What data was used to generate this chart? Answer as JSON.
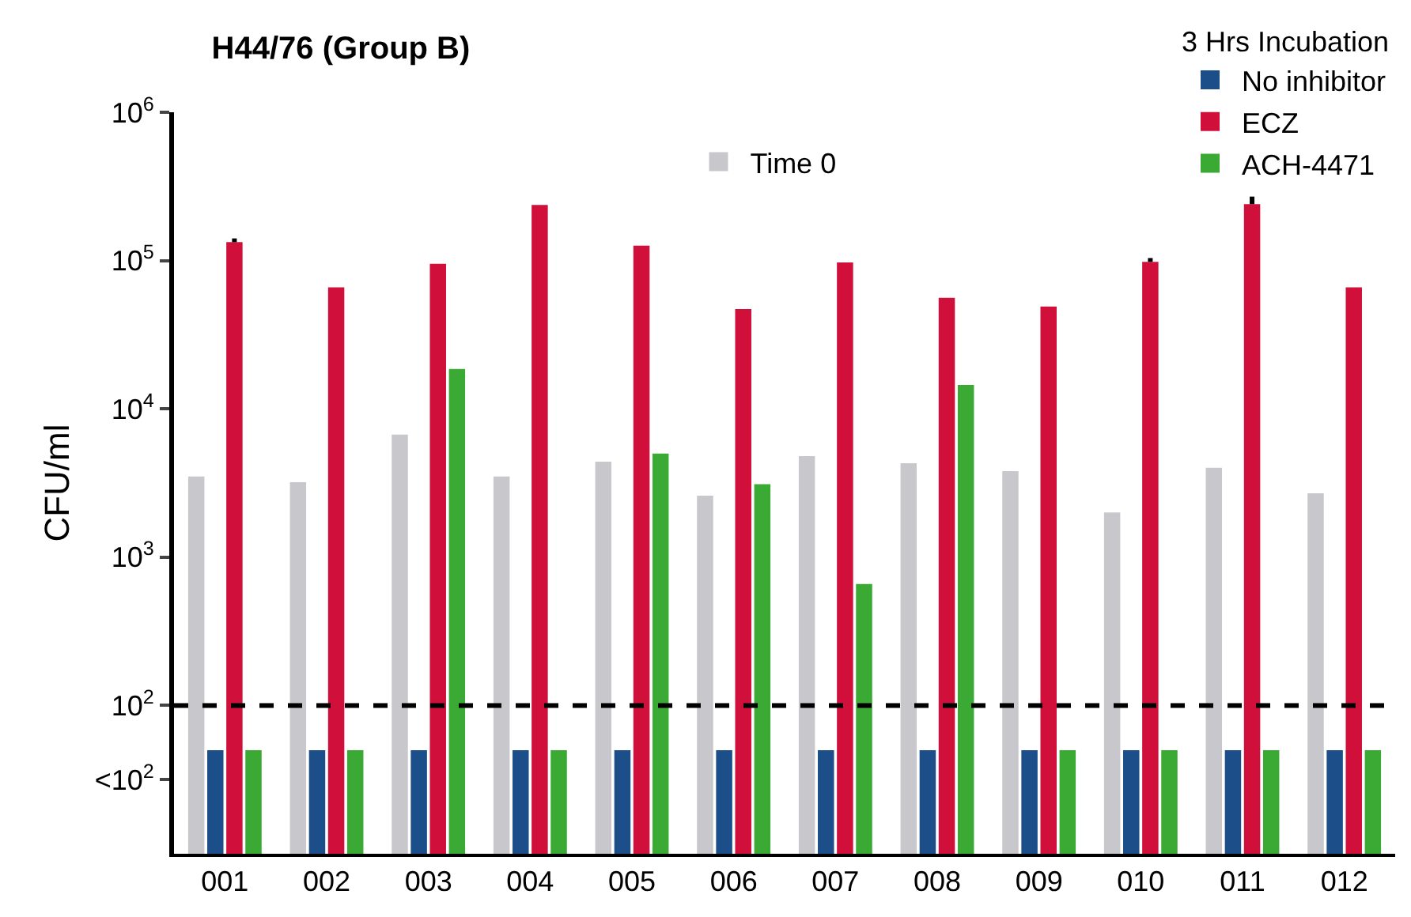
{
  "chart_data": {
    "type": "bar",
    "title": "H44/76 (Group B)",
    "ylabel": "CFU/ml",
    "legend_title": "3 Hrs Incubation",
    "categories": [
      "001",
      "002",
      "003",
      "004",
      "005",
      "006",
      "007",
      "008",
      "009",
      "010",
      "011",
      "012"
    ],
    "series": [
      {
        "name": "Time 0",
        "color": "#c8c8cc",
        "values": [
          3500,
          3200,
          6700,
          3500,
          4400,
          2600,
          4800,
          4300,
          3800,
          2000,
          4000,
          2700
        ]
      },
      {
        "name": "No inhibitor",
        "color": "#1c4f8a",
        "values": [
          50,
          50,
          50,
          50,
          50,
          50,
          50,
          50,
          50,
          50,
          50,
          50
        ]
      },
      {
        "name": "ECZ",
        "color": "#d0103a",
        "values": [
          133000,
          66000,
          95000,
          237000,
          126000,
          47000,
          97000,
          56000,
          49000,
          98000,
          240000,
          66000
        ],
        "errors": [
          8000,
          null,
          null,
          null,
          null,
          null,
          null,
          null,
          null,
          6000,
          30000,
          null
        ]
      },
      {
        "name": "ACH-4471",
        "color": "#3aaa35",
        "values": [
          50,
          50,
          18600,
          50,
          5000,
          3100,
          660,
          14500,
          50,
          50,
          50,
          50
        ]
      }
    ],
    "log": "y",
    "ylim": [
      10,
      1000000
    ],
    "yticks": [
      {
        "value": 31.6,
        "label": "<10$^{2}$"
      },
      {
        "value": 100,
        "label": "10$^{2}$"
      },
      {
        "value": 1000,
        "label": "10$^{3}$"
      },
      {
        "value": 10000,
        "label": "10$^{4}$"
      },
      {
        "value": 100000,
        "label": "10$^{5}$"
      },
      {
        "value": 1000000,
        "label": "10$^{6}$"
      }
    ],
    "ref_lines": [
      {
        "axis": "y",
        "value": 100,
        "label": null,
        "color": "#000000",
        "line_style": "dashed"
      }
    ],
    "legend": "top right"
  }
}
